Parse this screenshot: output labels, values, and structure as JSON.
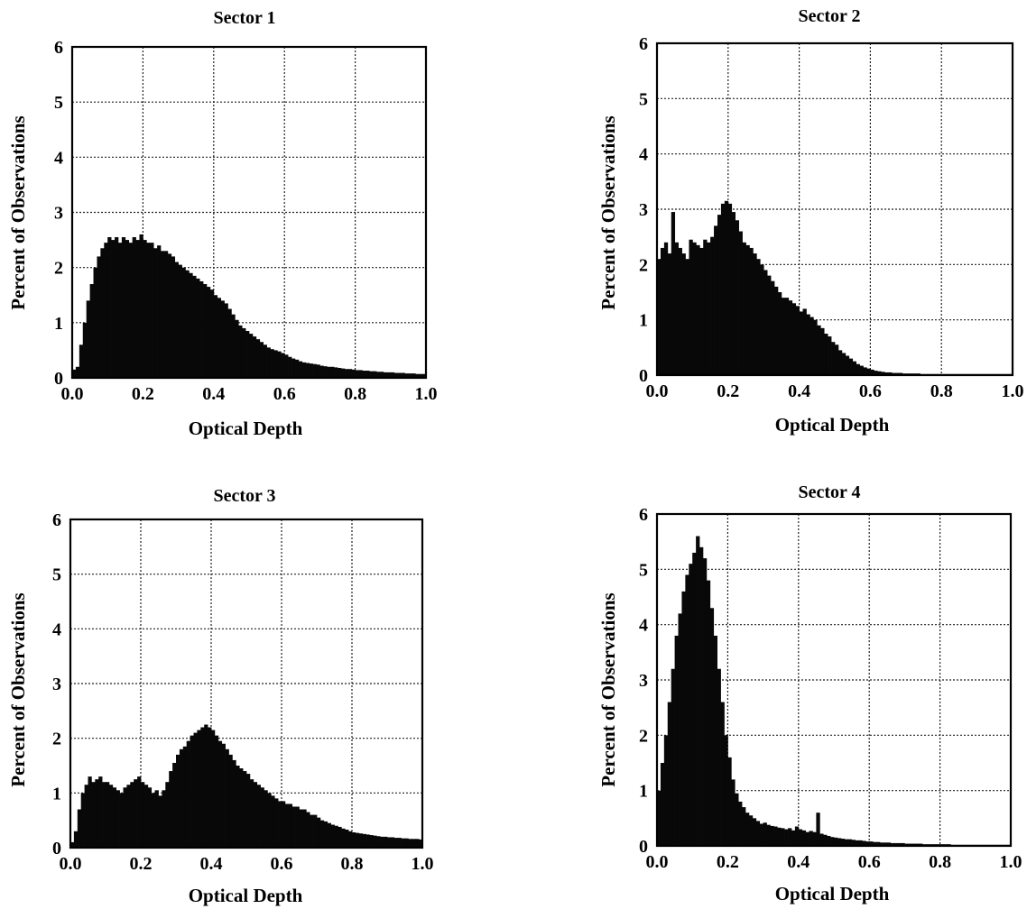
{
  "chart_data": [
    {
      "type": "bar",
      "title": "Sector 1",
      "xlabel": "Optical Depth",
      "ylabel": "Percent of Observations",
      "xlim": [
        0,
        1
      ],
      "ylim": [
        0,
        6
      ],
      "grid": true,
      "xticks": [
        "0.0",
        "0.2",
        "0.4",
        "0.6",
        "0.8",
        "1.0"
      ],
      "yticks": [
        "0",
        "1",
        "2",
        "3",
        "4",
        "5",
        "6"
      ],
      "bin_width": 0.01,
      "x": [
        0.005,
        0.015,
        0.025,
        0.035,
        0.045,
        0.055,
        0.065,
        0.075,
        0.085,
        0.095,
        0.105,
        0.115,
        0.125,
        0.135,
        0.145,
        0.155,
        0.165,
        0.175,
        0.185,
        0.195,
        0.205,
        0.215,
        0.225,
        0.235,
        0.245,
        0.255,
        0.265,
        0.275,
        0.285,
        0.295,
        0.305,
        0.315,
        0.325,
        0.335,
        0.345,
        0.355,
        0.365,
        0.375,
        0.385,
        0.395,
        0.405,
        0.415,
        0.425,
        0.435,
        0.445,
        0.455,
        0.465,
        0.475,
        0.485,
        0.495,
        0.505,
        0.515,
        0.525,
        0.535,
        0.545,
        0.555,
        0.565,
        0.575,
        0.585,
        0.595,
        0.605,
        0.615,
        0.625,
        0.635,
        0.645,
        0.655,
        0.665,
        0.675,
        0.685,
        0.695,
        0.705,
        0.715,
        0.725,
        0.735,
        0.745,
        0.755,
        0.765,
        0.775,
        0.785,
        0.795,
        0.805,
        0.815,
        0.825,
        0.835,
        0.845,
        0.855,
        0.865,
        0.875,
        0.885,
        0.895,
        0.905,
        0.915,
        0.925,
        0.935,
        0.945,
        0.955,
        0.965,
        0.975,
        0.985,
        0.995
      ],
      "values": [
        0.15,
        0.2,
        0.6,
        1.0,
        1.4,
        1.7,
        2.0,
        2.2,
        2.35,
        2.45,
        2.55,
        2.5,
        2.55,
        2.45,
        2.55,
        2.5,
        2.45,
        2.55,
        2.5,
        2.6,
        2.5,
        2.45,
        2.45,
        2.35,
        2.4,
        2.3,
        2.3,
        2.25,
        2.2,
        2.1,
        2.05,
        2.0,
        1.95,
        1.9,
        1.85,
        1.8,
        1.75,
        1.7,
        1.65,
        1.6,
        1.5,
        1.45,
        1.4,
        1.35,
        1.25,
        1.15,
        1.05,
        0.95,
        0.9,
        0.85,
        0.8,
        0.75,
        0.7,
        0.65,
        0.6,
        0.55,
        0.52,
        0.5,
        0.48,
        0.45,
        0.42,
        0.38,
        0.35,
        0.33,
        0.3,
        0.28,
        0.27,
        0.26,
        0.25,
        0.24,
        0.22,
        0.21,
        0.2,
        0.2,
        0.19,
        0.18,
        0.17,
        0.16,
        0.16,
        0.15,
        0.14,
        0.14,
        0.13,
        0.13,
        0.12,
        0.12,
        0.11,
        0.11,
        0.1,
        0.1,
        0.1,
        0.09,
        0.09,
        0.09,
        0.08,
        0.08,
        0.08,
        0.07,
        0.07,
        0.07
      ]
    },
    {
      "type": "bar",
      "title": "Sector 2",
      "xlabel": "Optical Depth",
      "ylabel": "Percent of Observations",
      "xlim": [
        0,
        1
      ],
      "ylim": [
        0,
        6
      ],
      "grid": true,
      "xticks": [
        "0.0",
        "0.2",
        "0.4",
        "0.6",
        "0.8",
        "1.0"
      ],
      "yticks": [
        "0",
        "1",
        "2",
        "3",
        "4",
        "5",
        "6"
      ],
      "bin_width": 0.01,
      "x": [
        0.005,
        0.015,
        0.025,
        0.035,
        0.045,
        0.055,
        0.065,
        0.075,
        0.085,
        0.095,
        0.105,
        0.115,
        0.125,
        0.135,
        0.145,
        0.155,
        0.165,
        0.175,
        0.185,
        0.195,
        0.205,
        0.215,
        0.225,
        0.235,
        0.245,
        0.255,
        0.265,
        0.275,
        0.285,
        0.295,
        0.305,
        0.315,
        0.325,
        0.335,
        0.345,
        0.355,
        0.365,
        0.375,
        0.385,
        0.395,
        0.405,
        0.415,
        0.425,
        0.435,
        0.445,
        0.455,
        0.465,
        0.475,
        0.485,
        0.495,
        0.505,
        0.515,
        0.525,
        0.535,
        0.545,
        0.555,
        0.565,
        0.575,
        0.585,
        0.595,
        0.605,
        0.615,
        0.625,
        0.635,
        0.645,
        0.655,
        0.665,
        0.675,
        0.685,
        0.695,
        0.705,
        0.715,
        0.725,
        0.735,
        0.745,
        0.755,
        0.765,
        0.775,
        0.785,
        0.795,
        0.805,
        0.815,
        0.825,
        0.835,
        0.845,
        0.855,
        0.865,
        0.875,
        0.885,
        0.895,
        0.905,
        0.915,
        0.925,
        0.935,
        0.945,
        0.955,
        0.965,
        0.975,
        0.985,
        0.995
      ],
      "values": [
        2.1,
        2.3,
        2.4,
        2.2,
        2.95,
        2.4,
        2.3,
        2.2,
        2.1,
        2.45,
        2.4,
        2.35,
        2.3,
        2.45,
        2.4,
        2.5,
        2.7,
        2.9,
        3.1,
        3.15,
        3.1,
        2.95,
        2.8,
        2.6,
        2.4,
        2.35,
        2.3,
        2.2,
        2.1,
        2.0,
        1.9,
        1.8,
        1.7,
        1.6,
        1.5,
        1.4,
        1.4,
        1.35,
        1.3,
        1.25,
        1.15,
        1.2,
        1.1,
        1.05,
        1.0,
        0.9,
        0.85,
        0.75,
        0.7,
        0.6,
        0.55,
        0.45,
        0.4,
        0.35,
        0.3,
        0.25,
        0.2,
        0.17,
        0.14,
        0.12,
        0.1,
        0.08,
        0.07,
        0.06,
        0.05,
        0.05,
        0.04,
        0.04,
        0.04,
        0.03,
        0.03,
        0.03,
        0.03,
        0.03,
        0.02,
        0.02,
        0.02,
        0.02,
        0.02,
        0.02,
        0.02,
        0.02,
        0.02,
        0.02,
        0.02,
        0.02,
        0.02,
        0.02,
        0.02,
        0.02,
        0.02,
        0.02,
        0.02,
        0.02,
        0.02,
        0.02,
        0.02,
        0.02,
        0.02,
        0.02
      ]
    },
    {
      "type": "bar",
      "title": "Sector 3",
      "xlabel": "Optical Depth",
      "ylabel": "Percent of Observations",
      "xlim": [
        0,
        1
      ],
      "ylim": [
        0,
        6
      ],
      "grid": true,
      "xticks": [
        "0.0",
        "0.2",
        "0.4",
        "0.6",
        "0.8",
        "1.0"
      ],
      "yticks": [
        "0",
        "1",
        "2",
        "3",
        "4",
        "5",
        "6"
      ],
      "bin_width": 0.01,
      "x": [
        0.005,
        0.015,
        0.025,
        0.035,
        0.045,
        0.055,
        0.065,
        0.075,
        0.085,
        0.095,
        0.105,
        0.115,
        0.125,
        0.135,
        0.145,
        0.155,
        0.165,
        0.175,
        0.185,
        0.195,
        0.205,
        0.215,
        0.225,
        0.235,
        0.245,
        0.255,
        0.265,
        0.275,
        0.285,
        0.295,
        0.305,
        0.315,
        0.325,
        0.335,
        0.345,
        0.355,
        0.365,
        0.375,
        0.385,
        0.395,
        0.405,
        0.415,
        0.425,
        0.435,
        0.445,
        0.455,
        0.465,
        0.475,
        0.485,
        0.495,
        0.505,
        0.515,
        0.525,
        0.535,
        0.545,
        0.555,
        0.565,
        0.575,
        0.585,
        0.595,
        0.605,
        0.615,
        0.625,
        0.635,
        0.645,
        0.655,
        0.665,
        0.675,
        0.685,
        0.695,
        0.705,
        0.715,
        0.725,
        0.735,
        0.745,
        0.755,
        0.765,
        0.775,
        0.785,
        0.795,
        0.805,
        0.815,
        0.825,
        0.835,
        0.845,
        0.855,
        0.865,
        0.875,
        0.885,
        0.895,
        0.905,
        0.915,
        0.925,
        0.935,
        0.945,
        0.955,
        0.965,
        0.975,
        0.985,
        0.995
      ],
      "values": [
        0.1,
        0.3,
        0.7,
        1.0,
        1.15,
        1.3,
        1.2,
        1.25,
        1.3,
        1.2,
        1.2,
        1.15,
        1.1,
        1.05,
        1.0,
        1.1,
        1.15,
        1.2,
        1.25,
        1.3,
        1.2,
        1.15,
        1.1,
        1.0,
        1.05,
        0.95,
        1.05,
        1.2,
        1.4,
        1.55,
        1.7,
        1.8,
        1.85,
        1.95,
        2.05,
        2.1,
        2.15,
        2.2,
        2.25,
        2.2,
        2.15,
        2.05,
        1.95,
        1.9,
        1.8,
        1.7,
        1.6,
        1.5,
        1.45,
        1.4,
        1.35,
        1.25,
        1.2,
        1.15,
        1.1,
        1.05,
        1.0,
        0.95,
        0.9,
        0.85,
        0.85,
        0.8,
        0.8,
        0.75,
        0.75,
        0.7,
        0.7,
        0.65,
        0.6,
        0.6,
        0.55,
        0.5,
        0.48,
        0.45,
        0.42,
        0.4,
        0.38,
        0.35,
        0.33,
        0.3,
        0.28,
        0.27,
        0.26,
        0.25,
        0.24,
        0.23,
        0.22,
        0.21,
        0.2,
        0.2,
        0.19,
        0.19,
        0.18,
        0.18,
        0.17,
        0.17,
        0.16,
        0.16,
        0.16,
        0.15
      ]
    },
    {
      "type": "bar",
      "title": "Sector 4",
      "xlabel": "Optical Depth",
      "ylabel": "Percent of Observations",
      "xlim": [
        0,
        1
      ],
      "ylim": [
        0,
        6
      ],
      "grid": true,
      "xticks": [
        "0.0",
        "0.2",
        "0.4",
        "0.6",
        "0.8",
        "1.0"
      ],
      "yticks": [
        "0",
        "1",
        "2",
        "3",
        "4",
        "5",
        "6"
      ],
      "bin_width": 0.01,
      "x": [
        0.005,
        0.015,
        0.025,
        0.035,
        0.045,
        0.055,
        0.065,
        0.075,
        0.085,
        0.095,
        0.105,
        0.115,
        0.125,
        0.135,
        0.145,
        0.155,
        0.165,
        0.175,
        0.185,
        0.195,
        0.205,
        0.215,
        0.225,
        0.235,
        0.245,
        0.255,
        0.265,
        0.275,
        0.285,
        0.295,
        0.305,
        0.315,
        0.325,
        0.335,
        0.345,
        0.355,
        0.365,
        0.375,
        0.385,
        0.395,
        0.405,
        0.415,
        0.425,
        0.435,
        0.445,
        0.455,
        0.465,
        0.475,
        0.485,
        0.495,
        0.505,
        0.515,
        0.525,
        0.535,
        0.545,
        0.555,
        0.565,
        0.575,
        0.585,
        0.595,
        0.605,
        0.615,
        0.625,
        0.635,
        0.645,
        0.655,
        0.665,
        0.675,
        0.685,
        0.695,
        0.705,
        0.715,
        0.725,
        0.735,
        0.745,
        0.755,
        0.765,
        0.775,
        0.785,
        0.795,
        0.805,
        0.815,
        0.825,
        0.835,
        0.845,
        0.855,
        0.865,
        0.875,
        0.885,
        0.895,
        0.905,
        0.915,
        0.925,
        0.935,
        0.945,
        0.955,
        0.965,
        0.975,
        0.985,
        0.995
      ],
      "values": [
        1.0,
        1.5,
        2.0,
        2.6,
        3.2,
        3.8,
        4.2,
        4.6,
        4.9,
        5.1,
        5.3,
        5.6,
        5.4,
        5.2,
        4.8,
        4.3,
        3.8,
        3.2,
        2.6,
        2.0,
        1.6,
        1.2,
        0.95,
        0.8,
        0.7,
        0.6,
        0.55,
        0.5,
        0.45,
        0.4,
        0.42,
        0.38,
        0.36,
        0.35,
        0.33,
        0.32,
        0.3,
        0.32,
        0.28,
        0.35,
        0.3,
        0.28,
        0.25,
        0.27,
        0.25,
        0.6,
        0.22,
        0.2,
        0.18,
        0.16,
        0.15,
        0.14,
        0.13,
        0.12,
        0.12,
        0.11,
        0.1,
        0.1,
        0.09,
        0.08,
        0.08,
        0.07,
        0.07,
        0.06,
        0.06,
        0.06,
        0.05,
        0.05,
        0.05,
        0.05,
        0.04,
        0.04,
        0.04,
        0.04,
        0.04,
        0.03,
        0.03,
        0.03,
        0.03,
        0.03,
        0.03,
        0.03,
        0.03,
        0.02,
        0.02,
        0.02,
        0.02,
        0.02,
        0.02,
        0.02,
        0.02,
        0.02,
        0.02,
        0.02,
        0.02,
        0.02,
        0.02,
        0.02,
        0.02,
        0.02
      ]
    }
  ]
}
